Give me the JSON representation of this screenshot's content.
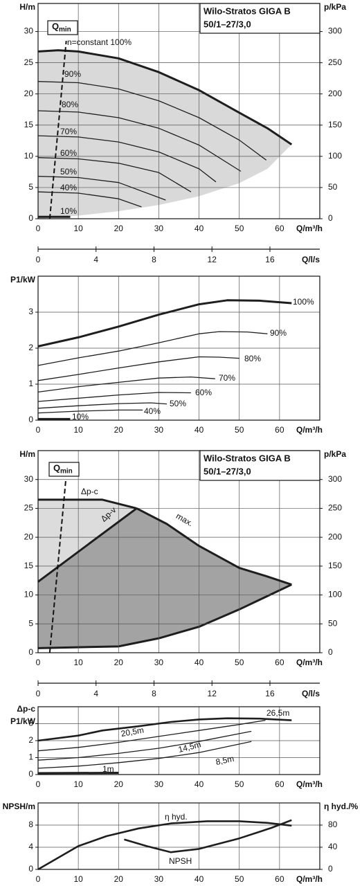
{
  "chart_data": [
    {
      "type": "line",
      "title_lines": [
        "Wilo-Stratos GIGA B",
        "50/1–27/3,0"
      ],
      "ylabel": "H/m",
      "y2label": "p/kPa",
      "xlabel": "Q/m³/h",
      "x2label": "Q/l/s",
      "xlim": [
        0,
        70
      ],
      "xticks": [
        0,
        10,
        20,
        30,
        40,
        50,
        60
      ],
      "x2lim": [
        0,
        19.44
      ],
      "x2ticks": [
        0,
        4,
        8,
        12,
        16
      ],
      "ylim": [
        0,
        34.5
      ],
      "yticks": [
        0,
        5,
        10,
        15,
        20,
        25,
        30
      ],
      "y2lim": [
        0,
        345
      ],
      "y2ticks": [
        0,
        50,
        100,
        150,
        200,
        250,
        300
      ],
      "grid": true,
      "area_colors": [
        "#d9d9d9"
      ],
      "qmin": {
        "label": "Q",
        "subscript": "min",
        "x": [
          2.9,
          7
        ],
        "values": [
          0,
          28.5
        ]
      },
      "shaded": {
        "x": [
          0,
          10,
          20,
          30,
          40,
          50,
          57,
          63
        ],
        "values": [
          0,
          0.5,
          1.2,
          2.2,
          3.6,
          5.7,
          8.0,
          11.9
        ]
      },
      "series": [
        {
          "name": "n=constant 100%",
          "color": "#1e1e1e",
          "linewidth": 3,
          "x": [
            0,
            5,
            10,
            20,
            30,
            40,
            50,
            57,
            63
          ],
          "values": [
            26.8,
            27,
            26.8,
            25.7,
            23.5,
            20.6,
            17.0,
            14.5,
            11.9
          ]
        },
        {
          "name": "90%",
          "color": "#1e1e1e",
          "linewidth": 1.3,
          "x": [
            0,
            10,
            20,
            30,
            40,
            50,
            56.7
          ],
          "values": [
            22,
            21.8,
            20.8,
            18.9,
            16.2,
            12.6,
            9.4
          ]
        },
        {
          "name": "80%",
          "color": "#1e1e1e",
          "linewidth": 1.3,
          "x": [
            0,
            10,
            20,
            30,
            40,
            50.4
          ],
          "values": [
            17.3,
            17.1,
            16.2,
            14.5,
            11.8,
            7.6
          ]
        },
        {
          "name": "70%",
          "color": "#1e1e1e",
          "linewidth": 1.3,
          "x": [
            0,
            10,
            20,
            30,
            40,
            44.2
          ],
          "values": [
            13.3,
            13.1,
            12.3,
            10.7,
            8.0,
            5.9
          ]
        },
        {
          "name": "60%",
          "color": "#1e1e1e",
          "linewidth": 1.3,
          "x": [
            0,
            10,
            20,
            30,
            38
          ],
          "values": [
            9.8,
            9.6,
            8.9,
            7.4,
            4.3
          ]
        },
        {
          "name": "50%",
          "color": "#1e1e1e",
          "linewidth": 1.3,
          "x": [
            0,
            10,
            20,
            31.7
          ],
          "values": [
            6.8,
            6.6,
            5.8,
            3.0
          ]
        },
        {
          "name": "40%",
          "color": "#1e1e1e",
          "linewidth": 1.3,
          "x": [
            0,
            10,
            20,
            25.7
          ],
          "values": [
            4.3,
            4.1,
            3.2,
            1.9
          ]
        },
        {
          "name": "10%",
          "color": "#1e1e1e",
          "linewidth": 3,
          "x": [
            0,
            8
          ],
          "values": [
            0.3,
            0.3
          ]
        }
      ]
    },
    {
      "type": "line",
      "ylabel": "P1/kW",
      "xlabel": "Q/m³/h",
      "xlim": [
        0,
        70
      ],
      "xticks": [
        0,
        10,
        20,
        30,
        40,
        50,
        60
      ],
      "ylim": [
        0,
        4
      ],
      "yticks": [
        0,
        1,
        2,
        3
      ],
      "grid": true,
      "series": [
        {
          "name": "100%",
          "color": "#1e1e1e",
          "linewidth": 3,
          "x": [
            0,
            10,
            20,
            30,
            40,
            47,
            55,
            63
          ],
          "values": [
            2.05,
            2.3,
            2.6,
            2.93,
            3.22,
            3.33,
            3.32,
            3.25
          ]
        },
        {
          "name": "90%",
          "color": "#1e1e1e",
          "linewidth": 1.3,
          "x": [
            0,
            10,
            20,
            30,
            40,
            45,
            52,
            57
          ],
          "values": [
            1.52,
            1.73,
            1.92,
            2.15,
            2.4,
            2.46,
            2.45,
            2.4
          ]
        },
        {
          "name": "80%",
          "color": "#1e1e1e",
          "linewidth": 1.3,
          "x": [
            0,
            10,
            20,
            30,
            40,
            45,
            50
          ],
          "values": [
            1.1,
            1.27,
            1.45,
            1.62,
            1.76,
            1.75,
            1.72
          ]
        },
        {
          "name": "70%",
          "color": "#1e1e1e",
          "linewidth": 1.3,
          "x": [
            0,
            10,
            20,
            30,
            38,
            44
          ],
          "values": [
            0.78,
            0.93,
            1.05,
            1.17,
            1.2,
            1.15
          ]
        },
        {
          "name": "60%",
          "color": "#1e1e1e",
          "linewidth": 1.3,
          "x": [
            0,
            10,
            20,
            30,
            38
          ],
          "values": [
            0.52,
            0.61,
            0.7,
            0.77,
            0.76
          ]
        },
        {
          "name": "50%",
          "color": "#1e1e1e",
          "linewidth": 1.3,
          "x": [
            0,
            10,
            20,
            28,
            32
          ],
          "values": [
            0.33,
            0.4,
            0.46,
            0.48,
            0.45
          ]
        },
        {
          "name": "40%",
          "color": "#1e1e1e",
          "linewidth": 1.3,
          "x": [
            0,
            10,
            20,
            26
          ],
          "values": [
            0.2,
            0.25,
            0.28,
            0.28
          ]
        },
        {
          "name": "10%",
          "color": "#1e1e1e",
          "linewidth": 3,
          "x": [
            0,
            8
          ],
          "values": [
            0.03,
            0.03
          ]
        }
      ]
    },
    {
      "type": "line",
      "title_lines": [
        "Wilo-Stratos GIGA B",
        "50/1–27/3,0"
      ],
      "ylabel": "H/m",
      "y2label": "p/kPa",
      "xlabel": "Q/m³/h",
      "x2label": "Q/l/s",
      "xlim": [
        0,
        70
      ],
      "xticks": [
        0,
        10,
        20,
        30,
        40,
        50,
        60
      ],
      "x2lim": [
        0,
        19.44
      ],
      "x2ticks": [
        0,
        4,
        8,
        12,
        16
      ],
      "ylim": [
        0,
        35
      ],
      "yticks": [
        0,
        5,
        10,
        15,
        20,
        25,
        30
      ],
      "y2lim": [
        0,
        350
      ],
      "y2ticks": [
        0,
        50,
        100,
        150,
        200,
        250,
        300
      ],
      "grid": true,
      "area_colors": [
        "#dcdcdc",
        "#a3a3a3"
      ],
      "qmin": {
        "label": "Q",
        "subscript": "min",
        "x": [
          2.9,
          6.9
        ],
        "values": [
          0,
          30
        ]
      },
      "shaded": {
        "x": [
          0,
          20,
          30,
          40,
          50,
          63
        ],
        "values": [
          0.8,
          1.1,
          2.5,
          4.5,
          7.5,
          11.8
        ]
      },
      "series": [
        {
          "name": "Δp-c",
          "color": "#1e1e1e",
          "linewidth": 3,
          "x": [
            0,
            16,
            24.5
          ],
          "values": [
            26.5,
            26.5,
            25
          ]
        },
        {
          "name": "Δp-v",
          "color": "#1e1e1e",
          "linewidth": 3,
          "x": [
            0,
            24.5
          ],
          "values": [
            12.3,
            25
          ]
        },
        {
          "name": "max.",
          "color": "#1e1e1e",
          "linewidth": 3,
          "x": [
            24.5,
            32,
            40,
            50,
            57,
            63
          ],
          "values": [
            25,
            22.3,
            18.5,
            14.7,
            13.2,
            11.8
          ]
        }
      ]
    },
    {
      "type": "line",
      "ylabel": [
        "Δp-c",
        "P1/kW"
      ],
      "xlabel": "Q/m³/h",
      "xlim": [
        0,
        70
      ],
      "xticks": [
        0,
        10,
        20,
        30,
        40,
        50,
        60
      ],
      "ylim": [
        0,
        4
      ],
      "yticks": [
        0,
        1,
        2,
        3
      ],
      "grid": true,
      "series": [
        {
          "name": "26,5m",
          "color": "#1e1e1e",
          "linewidth": 2.6,
          "x": [
            0,
            10,
            16,
            25,
            33,
            40,
            47,
            55,
            63
          ],
          "values": [
            2.0,
            2.3,
            2.6,
            2.85,
            3.1,
            3.25,
            3.32,
            3.3,
            3.2
          ]
        },
        {
          "name": "20,5m",
          "color": "#1e1e1e",
          "linewidth": 1.3,
          "x": [
            0,
            10,
            20,
            30,
            40,
            50,
            56.5
          ],
          "values": [
            1.4,
            1.6,
            1.9,
            2.25,
            2.6,
            2.95,
            3.2
          ]
        },
        {
          "name": "14,5m",
          "color": "#1e1e1e",
          "linewidth": 1.3,
          "x": [
            0,
            10,
            20,
            30,
            40,
            53
          ],
          "values": [
            0.85,
            1.0,
            1.25,
            1.55,
            1.95,
            2.55
          ]
        },
        {
          "name": "8,5m",
          "color": "#1e1e1e",
          "linewidth": 1.3,
          "x": [
            0,
            10,
            20,
            30,
            40,
            53
          ],
          "values": [
            0.37,
            0.5,
            0.7,
            0.95,
            1.3,
            1.95
          ]
        },
        {
          "name": "1m",
          "color": "#1e1e1e",
          "linewidth": 3,
          "x": [
            0,
            20
          ],
          "values": [
            0.08,
            0.1
          ]
        }
      ]
    },
    {
      "type": "line",
      "ylabel": "NPSH/m",
      "y2label": "η hyd./%",
      "xlabel": "Q/m³/h",
      "xlim": [
        0,
        70
      ],
      "xticks": [
        0,
        10,
        20,
        30,
        40,
        50,
        60
      ],
      "ylim": [
        0,
        12
      ],
      "yticks": [
        0,
        4,
        8
      ],
      "y2lim": [
        0,
        120
      ],
      "y2ticks": [
        0,
        40,
        80
      ],
      "grid": true,
      "series": [
        {
          "name": "η hyd.",
          "color": "#1e1e1e",
          "linewidth": 2.6,
          "axis": "y2",
          "x": [
            0,
            10,
            17,
            25,
            33,
            42,
            50,
            57,
            63
          ],
          "values": [
            0,
            42,
            60,
            74,
            83,
            87,
            87,
            84,
            79
          ]
        },
        {
          "name": "NPSH",
          "color": "#1e1e1e",
          "linewidth": 2.6,
          "x": [
            21.4,
            27,
            33,
            40,
            50,
            58,
            63
          ],
          "values": [
            5.4,
            4.2,
            3.1,
            3.7,
            5.6,
            7.5,
            8.9
          ]
        }
      ]
    }
  ]
}
